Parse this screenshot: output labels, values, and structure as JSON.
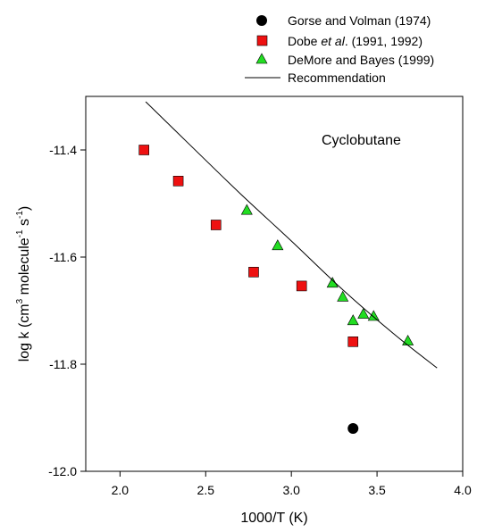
{
  "chart_data": {
    "type": "scatter",
    "annotation": "Cyclobutane",
    "xlabel": "1000/T (K)",
    "ylabel": "log k (cm³ molecule⁻¹ s⁻¹)",
    "xlim": [
      1.8,
      4.0
    ],
    "ylim": [
      -12.0,
      -11.3
    ],
    "xticks": [
      2.0,
      2.5,
      3.0,
      3.5,
      4.0
    ],
    "xtick_labels": [
      "2.0",
      "2.5",
      "3.0",
      "3.5",
      "4.0"
    ],
    "yticks": [
      -12.0,
      -11.8,
      -11.6,
      -11.4
    ],
    "ytick_labels": [
      "-12.0",
      "-11.8",
      "-11.6",
      "-11.4"
    ],
    "grid": false,
    "legend_position": "top-right, above plot",
    "series": [
      {
        "name": "Gorse and Volman (1974)",
        "marker": "circle",
        "color": "#000000",
        "points": [
          [
            3.36,
            -11.92
          ]
        ]
      },
      {
        "name": "Dobe et al. (1991, 1992)",
        "marker": "square",
        "color": "#ee1111",
        "points": [
          [
            2.14,
            -11.4
          ],
          [
            2.34,
            -11.458
          ],
          [
            2.56,
            -11.54
          ],
          [
            2.78,
            -11.628
          ],
          [
            3.06,
            -11.654
          ],
          [
            3.36,
            -11.758
          ]
        ]
      },
      {
        "name": "DeMore and Bayes (1999)",
        "marker": "triangle",
        "color": "#22dd22",
        "points": [
          [
            2.74,
            -11.512
          ],
          [
            2.92,
            -11.578
          ],
          [
            3.24,
            -11.648
          ],
          [
            3.3,
            -11.674
          ],
          [
            3.36,
            -11.718
          ],
          [
            3.42,
            -11.706
          ],
          [
            3.48,
            -11.71
          ],
          [
            3.68,
            -11.756
          ]
        ]
      },
      {
        "name": "Recommendation",
        "marker": "line",
        "color": "#000000",
        "points": [
          [
            2.15,
            -11.31
          ],
          [
            2.4,
            -11.388
          ],
          [
            2.7,
            -11.481
          ],
          [
            3.0,
            -11.57
          ],
          [
            3.3,
            -11.661
          ],
          [
            3.6,
            -11.744
          ],
          [
            3.85,
            -11.807
          ]
        ]
      }
    ]
  },
  "legend": {
    "gorse": "Gorse and Volman (1974)",
    "dobe_pre": "Dobe ",
    "dobe_italic": "et al",
    "dobe_post": ". (1991, 1992)",
    "demore": "DeMore and Bayes (1999)",
    "recommendation": "Recommendation"
  },
  "axis_titles": {
    "x": "1000/T (K)",
    "y_main": "log k (cm",
    "y_sup1": "3",
    "y_mid": " molecule",
    "y_sup2": "-1",
    "y_s": " s",
    "y_sup3": "-1",
    "y_end": ")"
  }
}
